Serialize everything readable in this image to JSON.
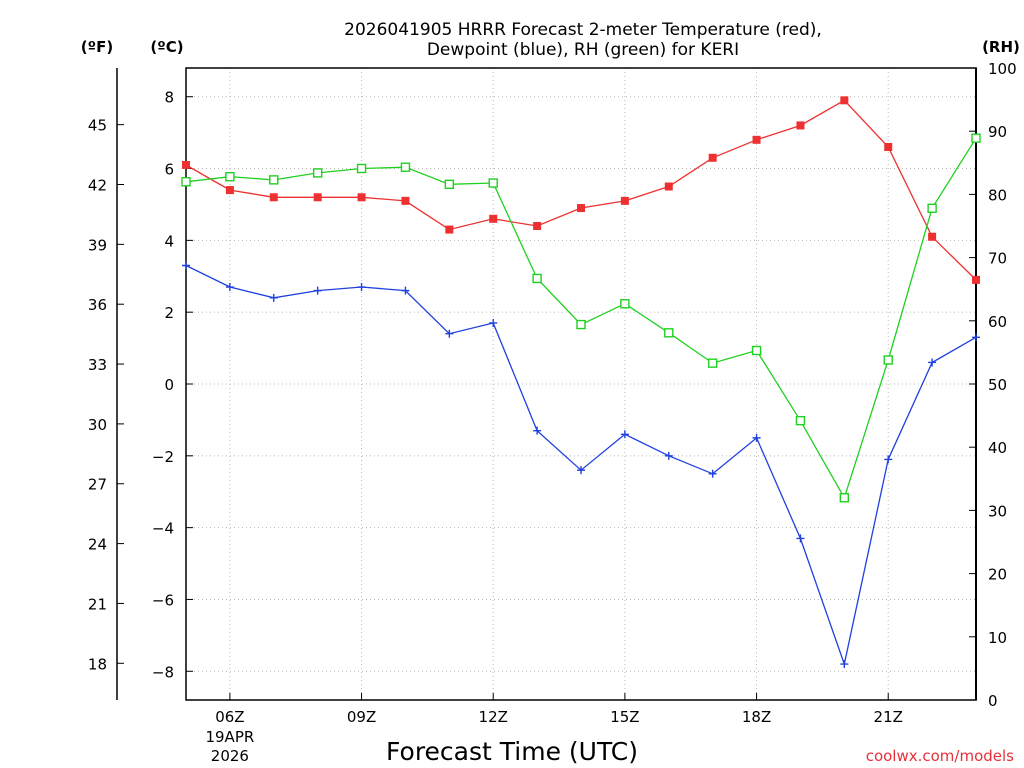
{
  "chart_data": {
    "type": "line",
    "title_line1": "2026041905 HRRR Forecast 2-meter Temperature (red),",
    "title_line2": "Dewpoint (blue), RH (green) for KERI",
    "xlabel": "Forecast Time (UTC)",
    "credit": "coolwx.com/models",
    "unit_f": "(ºF)",
    "unit_c": "(ºC)",
    "unit_rh": "(RH)",
    "x_hours": [
      5,
      6,
      7,
      8,
      9,
      10,
      11,
      12,
      13,
      14,
      15,
      16,
      17,
      18,
      19,
      20,
      21,
      22,
      23
    ],
    "xlim": [
      5,
      23
    ],
    "x_ticks": [
      {
        "hour": 6,
        "label": "06Z",
        "sub1": "19APR",
        "sub2": "2026"
      },
      {
        "hour": 9,
        "label": "09Z"
      },
      {
        "hour": 12,
        "label": "12Z"
      },
      {
        "hour": 15,
        "label": "15Z"
      },
      {
        "hour": 18,
        "label": "18Z"
      },
      {
        "hour": 21,
        "label": "21Z"
      }
    ],
    "ylim_c": [
      -8.8,
      8.8
    ],
    "c_ticks": [
      "8",
      "6",
      "4",
      "2",
      "0",
      "−2",
      "−4",
      "−6",
      "−8"
    ],
    "c_tick_values": [
      8,
      6,
      4,
      2,
      0,
      -2,
      -4,
      -6,
      -8
    ],
    "f_ticks": [
      "45",
      "42",
      "39",
      "36",
      "33",
      "30",
      "27",
      "24",
      "21",
      "18"
    ],
    "f_tick_values": [
      45,
      42,
      39,
      36,
      33,
      30,
      27,
      24,
      21,
      18
    ],
    "ylim_rh": [
      0,
      100
    ],
    "rh_ticks": [
      "100",
      "90",
      "80",
      "70",
      "60",
      "50",
      "40",
      "30",
      "20",
      "10",
      "0"
    ],
    "rh_tick_values": [
      100,
      90,
      80,
      70,
      60,
      50,
      40,
      30,
      20,
      10,
      0
    ],
    "series": [
      {
        "name": "Temperature",
        "color": "#ee3030",
        "marker": "filled-square",
        "axis": "celsius",
        "values": [
          6.1,
          5.4,
          5.2,
          5.2,
          5.2,
          5.1,
          4.3,
          4.6,
          4.4,
          4.9,
          5.1,
          5.5,
          6.3,
          6.8,
          7.2,
          7.9,
          6.6,
          4.1,
          2.9
        ]
      },
      {
        "name": "Dewpoint",
        "color": "#2040e0",
        "marker": "plus",
        "axis": "celsius",
        "values": [
          3.3,
          2.7,
          2.4,
          2.6,
          2.7,
          2.6,
          1.4,
          1.7,
          -1.3,
          -2.4,
          -1.4,
          -2.0,
          -2.5,
          -1.5,
          -4.3,
          -7.8,
          -2.1,
          0.6,
          1.3
        ]
      },
      {
        "name": "RH",
        "color": "#20d020",
        "marker": "open-square",
        "axis": "rh",
        "values": [
          82,
          82.8,
          82.3,
          83.4,
          84.1,
          84.3,
          81.6,
          81.8,
          66.7,
          59.4,
          62.7,
          58.1,
          53.3,
          55.3,
          44.2,
          32.0,
          53.8,
          77.8,
          88.9
        ]
      }
    ]
  }
}
